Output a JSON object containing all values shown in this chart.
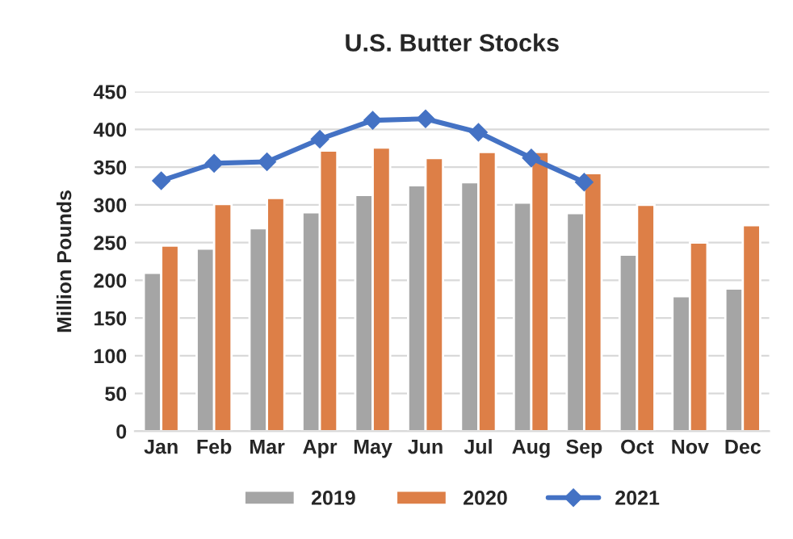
{
  "chart_data": {
    "type": "bar",
    "title": "U.S. Butter Stocks",
    "ylabel": "Million Pounds",
    "categories": [
      "Jan",
      "Feb",
      "Mar",
      "Apr",
      "May",
      "Jun",
      "Jul",
      "Aug",
      "Sep",
      "Oct",
      "Nov",
      "Dec"
    ],
    "series": [
      {
        "name": "2019",
        "color": "#a5a5a5",
        "values": [
          210,
          242,
          269,
          290,
          313,
          326,
          330,
          303,
          289,
          234,
          179,
          189
        ]
      },
      {
        "name": "2020",
        "color": "#dd7f47",
        "values": [
          246,
          301,
          309,
          372,
          376,
          362,
          370,
          370,
          342,
          300,
          250,
          273
        ]
      },
      {
        "name": "2021",
        "type": "line",
        "color": "#4472c4",
        "marker": "diamond",
        "values": [
          332,
          355,
          357,
          387,
          412,
          414,
          396,
          362,
          330,
          null,
          null,
          null
        ]
      }
    ],
    "ylim": [
      0,
      450
    ],
    "yticks": [
      0,
      50,
      100,
      150,
      200,
      250,
      300,
      350,
      400,
      450
    ],
    "grid": "y",
    "legend": "bottom"
  }
}
